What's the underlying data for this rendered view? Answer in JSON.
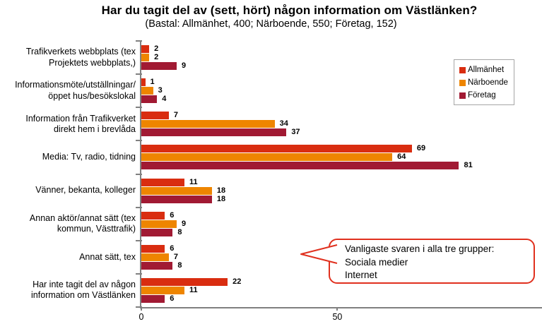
{
  "title": "Har du tagit del av (sett, hört) någon information om Västlänken?",
  "subtitle": "(Bastal: Allmänhet, 400; Närboende, 550; Företag, 152)",
  "chart_data": {
    "type": "bar",
    "orientation": "horizontal",
    "title": "Har du tagit del av (sett, hört) någon information om Västlänken?",
    "subtitle": "(Bastal: Allmänhet, 400; Närboende, 550; Företag, 152)",
    "categories": [
      "Trafikverkets webbplats (tex Projektets webbplats,)",
      "Informationsmöte/utställningar/öppet hus/besökslokal",
      "Information från Trafikverket direkt hem i brevlåda",
      "Media: Tv, radio, tidning",
      "Vänner, bekanta, kolleger",
      "Annan aktör/annat sätt (tex kommun, Västtrafik)",
      "Annat sätt, tex",
      "Har inte tagit del av någon information om Västlänken"
    ],
    "category_label_lines": [
      [
        "Trafikverkets webbplats (tex",
        "Projektets webbplats,)"
      ],
      [
        "Informationsmöte/utställningar/",
        "öppet hus/besökslokal"
      ],
      [
        "Information från Trafikverket",
        "direkt hem i brevlåda"
      ],
      [
        "Media: Tv, radio, tidning"
      ],
      [
        "Vänner, bekanta, kolleger"
      ],
      [
        "Annan aktör/annat sätt (tex",
        "kommun, Västtrafik)"
      ],
      [
        "Annat sätt, tex"
      ],
      [
        "Har inte tagit del av någon",
        "information om Västlänken"
      ]
    ],
    "series": [
      {
        "name": "Allmänhet",
        "color": "#d92d10",
        "values": [
          2,
          1,
          7,
          69,
          11,
          6,
          6,
          22
        ]
      },
      {
        "name": "Närboende",
        "color": "#ee8500",
        "values": [
          2,
          3,
          34,
          64,
          18,
          9,
          7,
          11
        ]
      },
      {
        "name": "Företag",
        "color": "#a11a33",
        "values": [
          9,
          4,
          37,
          81,
          18,
          8,
          8,
          6
        ]
      }
    ],
    "xlim": [
      0,
      102
    ],
    "x_ticks": [
      {
        "value": 0,
        "label": "0"
      },
      {
        "value": 50,
        "label": "50"
      }
    ],
    "grid": false,
    "legend_position": "upper-right",
    "value_labels": true,
    "axis_color": "#808080"
  },
  "callout": {
    "lines": [
      "Vanligaste svaren i alla tre grupper:",
      "Sociala medier",
      "Internet"
    ],
    "border_color": "#e0301e"
  }
}
